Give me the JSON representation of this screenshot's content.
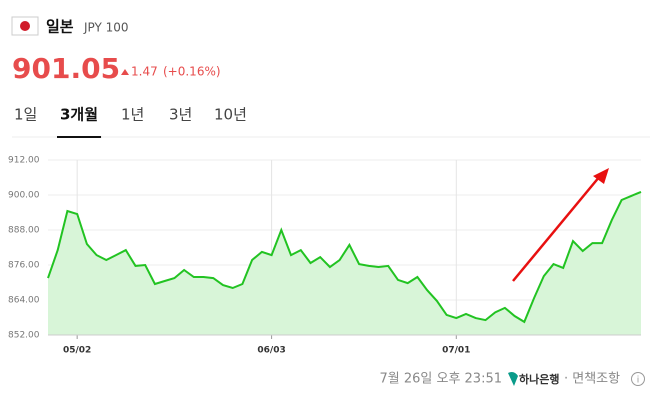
{
  "header": {
    "country": "일본",
    "currency": "JPY 100",
    "price": "901.05",
    "change": "1.47",
    "change_pct": "(+0.16%)"
  },
  "tabs": [
    "1일",
    "3개월",
    "1년",
    "3년",
    "10년"
  ],
  "selected_tab": "3개월",
  "chart_data": {
    "type": "area",
    "color": "#22c322",
    "fill": "#d8f5d8",
    "categories": [
      null,
      null,
      null,
      "05/02",
      null,
      null,
      null,
      null,
      null,
      null,
      null,
      null,
      null,
      null,
      null,
      null,
      null,
      null,
      null,
      null,
      null,
      null,
      null,
      "06/03",
      null,
      null,
      null,
      null,
      null,
      null,
      null,
      null,
      null,
      null,
      null,
      null,
      null,
      null,
      null,
      null,
      null,
      null,
      "07/01",
      null,
      null,
      null,
      null,
      null,
      null,
      null,
      null,
      null,
      null,
      null,
      null,
      null,
      null,
      null,
      null,
      null,
      null,
      null
    ],
    "values": [
      871.5,
      881.1,
      894.5,
      893.5,
      883.2,
      879.4,
      877.7,
      879.4,
      881.1,
      875.7,
      876,
      869.5,
      870.5,
      871.5,
      874.3,
      871.9,
      871.9,
      871.5,
      869.1,
      868.1,
      869.5,
      877.7,
      880.5,
      879.4,
      888,
      879.4,
      881.1,
      876.7,
      878.7,
      875.3,
      877.7,
      882.9,
      876.3,
      875.7,
      875.3,
      875.7,
      870.9,
      869.8,
      871.9,
      867.4,
      863.7,
      858.9,
      857.8,
      859.2,
      857.8,
      857.1,
      859.8,
      861.3,
      858.5,
      856.5,
      864.7,
      872.2,
      876.3,
      875,
      884.2,
      880.8,
      883.5,
      883.5,
      891.4,
      898.3,
      899.7,
      901.05
    ],
    "ylim": [
      852,
      912
    ],
    "yticks": [
      {
        "value": 852,
        "label": "852.00"
      },
      {
        "value": 864,
        "label": "864.00"
      },
      {
        "value": 876,
        "label": "876.00"
      },
      {
        "value": 888,
        "label": "888.00"
      },
      {
        "value": 900,
        "label": "900.00"
      },
      {
        "value": 912,
        "label": "912.00"
      }
    ],
    "grid": true
  },
  "footer": {
    "time": "7월 26일 오후 23:51",
    "source": "하나은행",
    "disclaimer": "· 면책조항"
  }
}
